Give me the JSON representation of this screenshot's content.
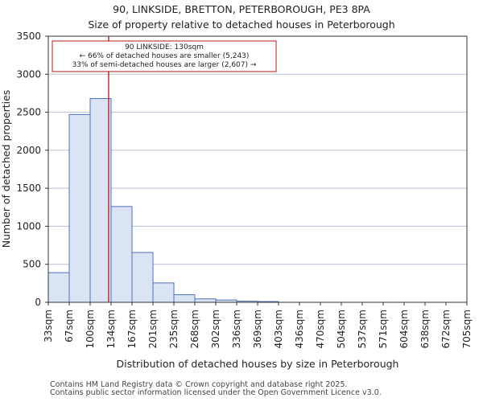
{
  "chart_data": {
    "type": "histogram",
    "title": "90, LINKSIDE, BRETTON, PETERBOROUGH, PE3 8PA",
    "subtitle": "Size of property relative to detached houses in Peterborough",
    "xlabel": "Distribution of detached houses by size in Peterborough",
    "ylabel": "Number of detached properties",
    "categories": [
      "33sqm",
      "67sqm",
      "100sqm",
      "134sqm",
      "167sqm",
      "201sqm",
      "235sqm",
      "268sqm",
      "302sqm",
      "336sqm",
      "369sqm",
      "403sqm",
      "436sqm",
      "470sqm",
      "504sqm",
      "537sqm",
      "571sqm",
      "604sqm",
      "638sqm",
      "672sqm",
      "705sqm"
    ],
    "values": [
      390,
      2470,
      2680,
      1260,
      655,
      255,
      100,
      45,
      30,
      15,
      10,
      0,
      0,
      0,
      0,
      0,
      0,
      0,
      0,
      0
    ],
    "ylim": [
      0,
      3500
    ],
    "yticks": [
      0,
      500,
      1000,
      1500,
      2000,
      2500,
      3000,
      3500
    ],
    "grid": true,
    "marker": {
      "value": 130,
      "lines": [
        "90 LINKSIDE: 130sqm",
        "← 66% of detached houses are smaller (5,243)",
        "33% of semi-detached houses are larger (2,607) →"
      ]
    },
    "colors": {
      "bar_fill": "#dbe4f5",
      "bar_edge": "#4f6fb5",
      "marker": "#b0181c"
    }
  },
  "footer": {
    "line1": "Contains HM Land Registry data © Crown copyright and database right 2025.",
    "line2": "Contains public sector information licensed under the Open Government Licence v3.0."
  }
}
